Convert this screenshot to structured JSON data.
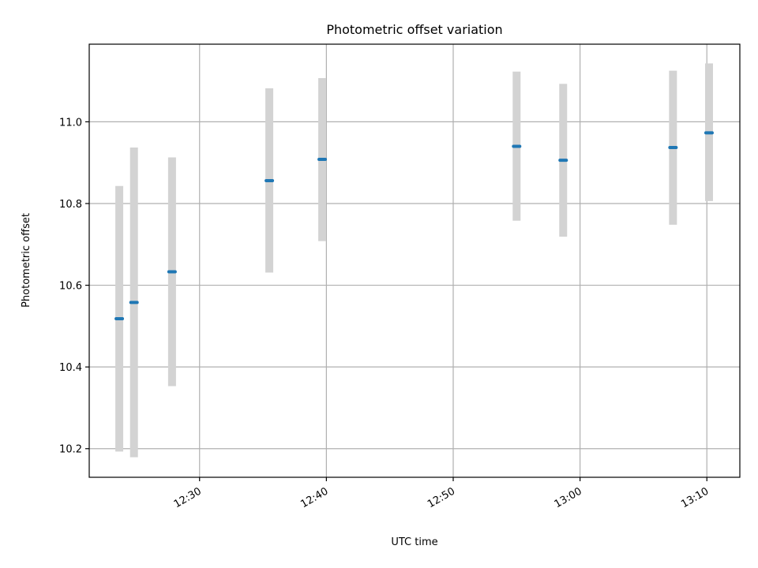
{
  "chart_data": {
    "type": "scatter",
    "title": "Photometric offset variation",
    "xlabel": "UTC time",
    "ylabel": "Photometric offset",
    "x_ticks": [
      "12:30",
      "12:40",
      "12:50",
      "13:00",
      "13:10"
    ],
    "x_ticks_minutes": [
      30,
      40,
      50,
      60,
      70
    ],
    "xlim_minutes": [
      21.3,
      72.6
    ],
    "y_ticks": [
      "10.2",
      "10.4",
      "10.6",
      "10.8",
      "11.0"
    ],
    "y_tick_values": [
      10.2,
      10.4,
      10.6,
      10.8,
      11.0
    ],
    "ylim": [
      10.13,
      11.19
    ],
    "grid": true,
    "colors": {
      "point": "#1f77b4",
      "error_bar": "#d3d3d3"
    },
    "points": [
      {
        "time": "12:23:40",
        "minutes": 23.67,
        "y": 10.518,
        "yerr_low": 10.193,
        "yerr_high": 10.843
      },
      {
        "time": "12:24:50",
        "minutes": 24.83,
        "y": 10.558,
        "yerr_low": 10.179,
        "yerr_high": 10.937
      },
      {
        "time": "12:27:50",
        "minutes": 27.83,
        "y": 10.633,
        "yerr_low": 10.353,
        "yerr_high": 10.913
      },
      {
        "time": "12:35:30",
        "minutes": 35.5,
        "y": 10.856,
        "yerr_low": 10.631,
        "yerr_high": 11.082
      },
      {
        "time": "12:39:40",
        "minutes": 39.67,
        "y": 10.908,
        "yerr_low": 10.708,
        "yerr_high": 11.107
      },
      {
        "time": "12:55:00",
        "minutes": 55.0,
        "y": 10.94,
        "yerr_low": 10.758,
        "yerr_high": 11.123
      },
      {
        "time": "12:58:40",
        "minutes": 58.67,
        "y": 10.906,
        "yerr_low": 10.719,
        "yerr_high": 11.093
      },
      {
        "time": "13:07:20",
        "minutes": 67.33,
        "y": 10.937,
        "yerr_low": 10.748,
        "yerr_high": 11.125
      },
      {
        "time": "13:10:10",
        "minutes": 70.17,
        "y": 10.973,
        "yerr_low": 10.806,
        "yerr_high": 11.143
      }
    ]
  }
}
